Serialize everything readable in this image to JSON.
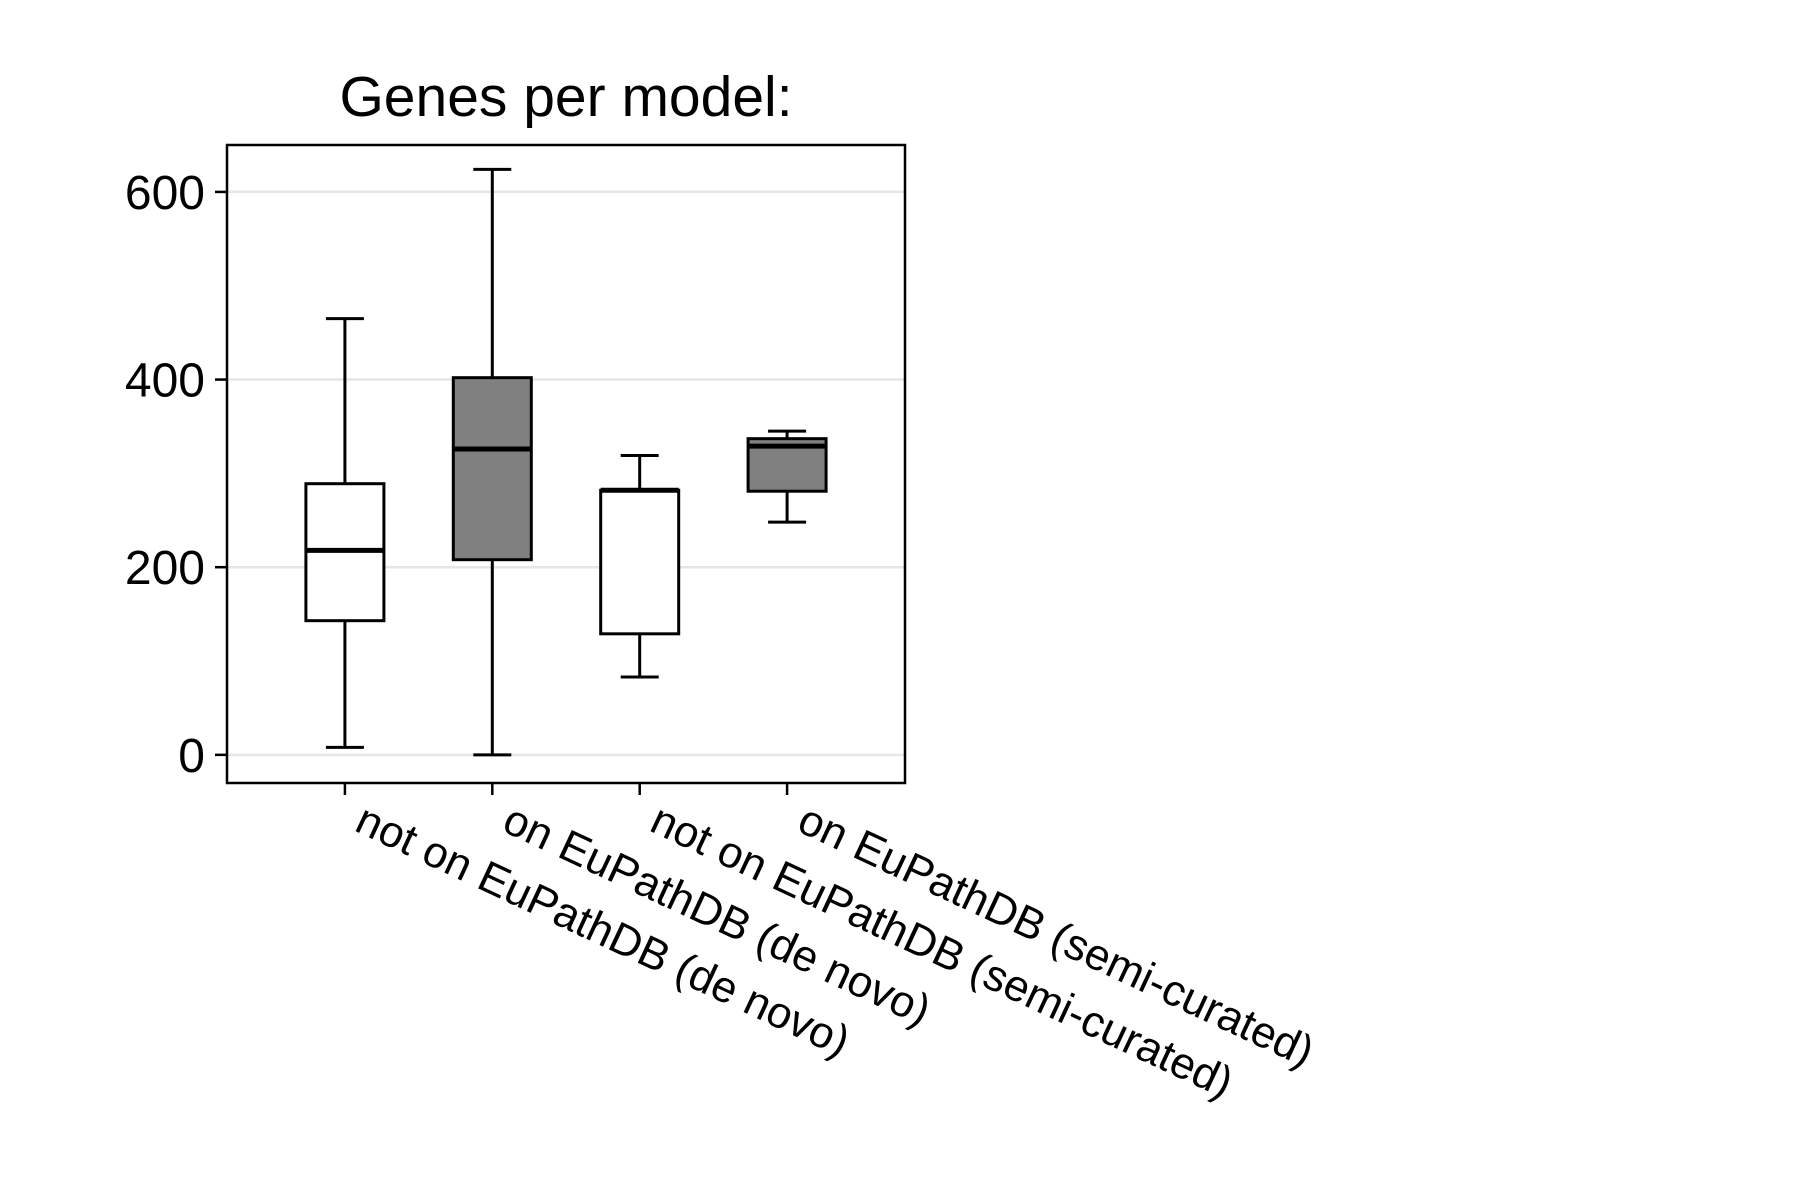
{
  "chart_data": {
    "type": "box",
    "title": "Genes per model:",
    "xlabel": "",
    "ylabel": "",
    "ylim": [
      -30,
      650
    ],
    "yticks": [
      0,
      200,
      400,
      600
    ],
    "grid": "horizontal",
    "categories": [
      "not on EuPathDB (de novo)",
      "on EuPathDB (de novo)",
      "not on EuPathDB (semi-curated)",
      "on EuPathDB (semi-curated)"
    ],
    "boxes": [
      {
        "category": "not on EuPathDB (de novo)",
        "min": 8,
        "q1": 143,
        "median": 218,
        "q3": 289,
        "max": 465,
        "fill": "#ffffff"
      },
      {
        "category": "on EuPathDB (de novo)",
        "min": 0,
        "q1": 208,
        "median": 326,
        "q3": 402,
        "max": 624,
        "fill": "#808080"
      },
      {
        "category": "not on EuPathDB (semi-curated)",
        "min": 83,
        "q1": 129,
        "median": 282,
        "q3": 282,
        "max": 319,
        "fill": "#ffffff"
      },
      {
        "category": "on EuPathDB (semi-curated)",
        "min": 248,
        "q1": 281,
        "median": 329,
        "q3": 337,
        "max": 345,
        "fill": "#808080"
      }
    ],
    "colors": {
      "stroke": "#000000",
      "grid": "#e6e6e6"
    }
  }
}
